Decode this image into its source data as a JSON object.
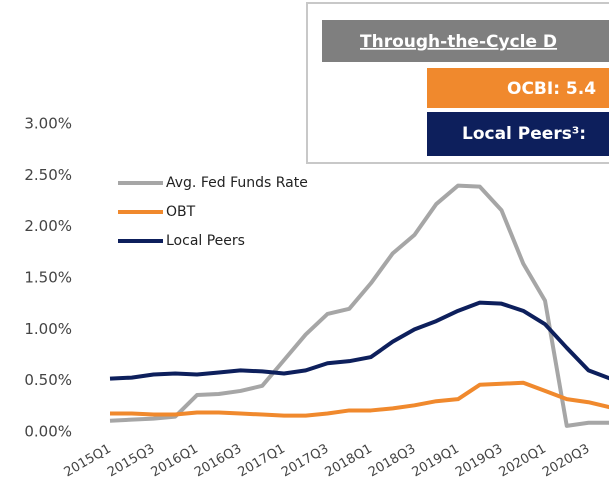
{
  "chart_data": {
    "type": "line",
    "annotations": [
      "Through-the-Cycle D",
      "OCBI: 5.4",
      "Local Peers³:"
    ],
    "categories": [
      "2015Q1",
      null,
      "2015Q3",
      null,
      "2016Q1",
      null,
      "2016Q3",
      null,
      "2017Q1",
      null,
      "2017Q3",
      null,
      "2018Q1",
      null,
      "2018Q3",
      null,
      "2019Q1",
      null,
      "2019Q3",
      null,
      "2020Q1",
      null,
      "2020Q3",
      null
    ],
    "series": [
      {
        "name": "Avg. Fed Funds Rate",
        "color": "#a6a6a6",
        "values": [
          0.11,
          0.12,
          0.13,
          0.15,
          0.36,
          0.37,
          0.4,
          0.45,
          0.7,
          0.95,
          1.15,
          1.2,
          1.45,
          1.74,
          1.92,
          2.22,
          2.4,
          2.39,
          2.16,
          1.64,
          1.28,
          0.06,
          0.09,
          0.09
        ]
      },
      {
        "name": "OBT",
        "color": "#f0892d",
        "values": [
          0.18,
          0.18,
          0.17,
          0.17,
          0.19,
          0.19,
          0.18,
          0.17,
          0.16,
          0.16,
          0.18,
          0.21,
          0.21,
          0.23,
          0.26,
          0.3,
          0.32,
          0.46,
          0.47,
          0.48,
          0.4,
          0.32,
          0.29,
          0.24
        ]
      },
      {
        "name": "Local Peers",
        "color": "#0d1f5c",
        "values": [
          0.52,
          0.53,
          0.56,
          0.57,
          0.56,
          0.58,
          0.6,
          0.59,
          0.57,
          0.6,
          0.67,
          0.69,
          0.73,
          0.88,
          1.0,
          1.08,
          1.18,
          1.26,
          1.25,
          1.18,
          1.05,
          0.82,
          0.6,
          0.52
        ]
      }
    ],
    "ylim": [
      0,
      3
    ],
    "yticks": [
      {
        "value": 0,
        "label": "0.00%"
      },
      {
        "value": 0.5,
        "label": "0.50%"
      },
      {
        "value": 1,
        "label": "1.00%"
      },
      {
        "value": 1.5,
        "label": "1.50%"
      },
      {
        "value": 2,
        "label": "2.00%"
      },
      {
        "value": 2.5,
        "label": "2.50%"
      },
      {
        "value": 3,
        "label": "3.00%"
      }
    ],
    "legend": "upper left"
  }
}
